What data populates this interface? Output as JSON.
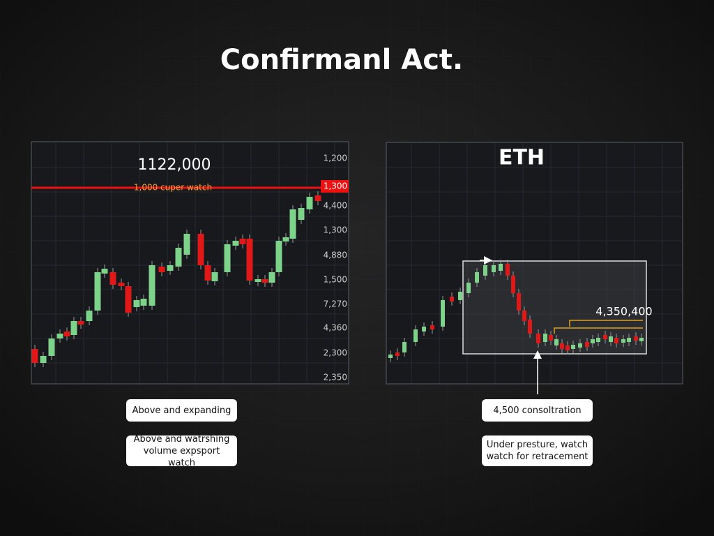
{
  "header": {
    "title": "Confirmanl Act."
  },
  "left_panel": {
    "headline": "1122,000",
    "line_label": "1,000 cuper watch",
    "marker_label": "1,300",
    "axis_labels": [
      "1,200",
      "4,400",
      "1,300",
      "4,880",
      "1,500",
      "7,270",
      "4,360",
      "2,300",
      "2,350"
    ]
  },
  "right_panel": {
    "title": "ETH",
    "box_label": "4,350,400"
  },
  "callouts": {
    "left": [
      "Above and expanding",
      "Above and watrshing volume expsport watch"
    ],
    "right": [
      "4,500 consoltration",
      "Under presture, watch watch for retracement"
    ]
  }
}
